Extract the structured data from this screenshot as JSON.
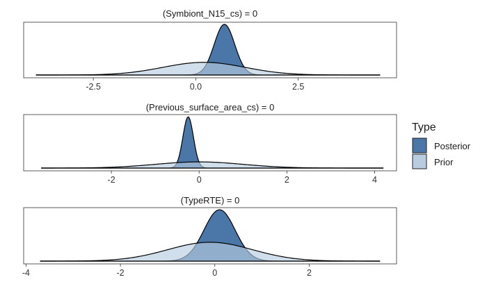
{
  "chart_data": {
    "type": "area",
    "series_names": [
      "Posterior",
      "Prior"
    ],
    "colors": {
      "Posterior": "#4A77A8",
      "Prior": "#B9CCE0"
    },
    "legend": {
      "title": "Type",
      "position": "right",
      "items": [
        "Posterior",
        "Prior"
      ]
    },
    "grid": false,
    "panels": [
      {
        "title": "(Symbiont_N15_cs) = 0",
        "xlim": [
          -4.2,
          4.9
        ],
        "xticks": [
          -2.5,
          0.0,
          2.5
        ],
        "tick_labels": [
          "-2.5",
          "0.0",
          "2.5"
        ],
        "range": [
          -3.9,
          4.5
        ],
        "prior": {
          "mean": 0.2,
          "sd": 1.0
        },
        "posterior": {
          "mean": 0.7,
          "sd": 0.25
        }
      },
      {
        "title": "(Previous_surface_area_cs) = 0",
        "xlim": [
          -4.0,
          4.5
        ],
        "xticks": [
          -2,
          0,
          2,
          4
        ],
        "tick_labels": [
          "-2",
          "0",
          "2",
          "4"
        ],
        "range": [
          -3.6,
          4.2
        ],
        "prior": {
          "mean": 0.0,
          "sd": 1.0
        },
        "posterior": {
          "mean": -0.25,
          "sd": 0.12
        }
      },
      {
        "title": "(TypeRTE) = 0",
        "xlim": [
          -4.05,
          3.85
        ],
        "xticks": [
          -4,
          -2,
          0,
          2
        ],
        "tick_labels": [
          "-4",
          "-2",
          "0",
          "2"
        ],
        "range": [
          -3.7,
          3.5
        ],
        "prior": {
          "mean": -0.1,
          "sd": 0.9
        },
        "posterior": {
          "mean": 0.1,
          "sd": 0.33
        }
      }
    ]
  }
}
